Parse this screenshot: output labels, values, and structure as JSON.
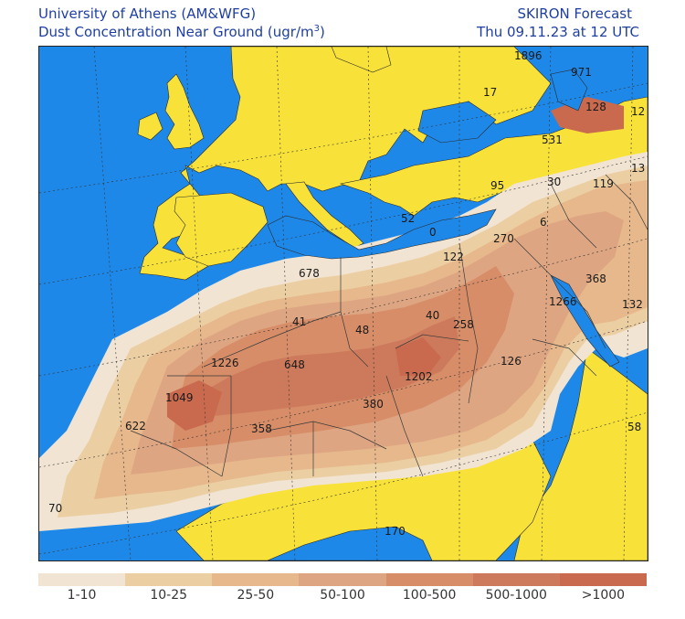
{
  "header": {
    "source": "University of Athens (AM&WFG)",
    "product_prefix": "Dust Concentration Near Ground (ugr/m",
    "product_exp": "3",
    "product_suffix": ")",
    "forecast": "SKIRON Forecast",
    "valid_time": "Thu 09.11.23 at 12 UTC"
  },
  "colors": {
    "ocean": "#1e88e8",
    "clean_land": "#f8e23a",
    "lvl1": "#f1e4d2",
    "lvl2": "#ebcfa2",
    "lvl3": "#e6b88c",
    "lvl4": "#dea582",
    "lvl5": "#d68d68",
    "lvl6": "#cd7a5c",
    "lvl7": "#c96a4f"
  },
  "legend": [
    {
      "label": "1-10",
      "color": "#f1e4d2"
    },
    {
      "label": "10-25",
      "color": "#ebcfa2"
    },
    {
      "label": "25-50",
      "color": "#e6b88c"
    },
    {
      "label": "50-100",
      "color": "#dea582"
    },
    {
      "label": "100-500",
      "color": "#d68d68"
    },
    {
      "label": "500-1000",
      "color": "#cd7a5c"
    },
    {
      "label": ">1000",
      "color": "#c96a4f"
    }
  ],
  "map_labels": [
    "1896",
    "971",
    "17",
    "128",
    "12",
    "531",
    "13",
    "95",
    "30",
    "119",
    "52",
    "0",
    "6",
    "270",
    "122",
    "678",
    "368",
    "1266",
    "132",
    "41",
    "48",
    "40",
    "258",
    "1226",
    "648",
    "126",
    "1202",
    "1049",
    "380",
    "622",
    "358",
    "58",
    "70",
    "170"
  ]
}
